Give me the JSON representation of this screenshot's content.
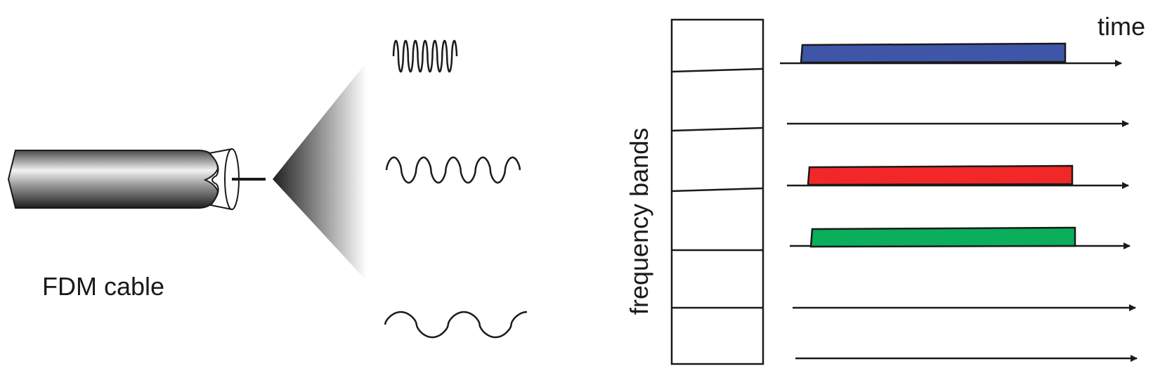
{
  "labels": {
    "cable": "FDM cable",
    "frequency_axis": "frequency bands",
    "time_axis": "time"
  },
  "colors": {
    "band_1": "#3f56a8",
    "band_3": "#f22828",
    "band_4": "#0aae5b",
    "stroke": "#1a1a1a"
  }
}
